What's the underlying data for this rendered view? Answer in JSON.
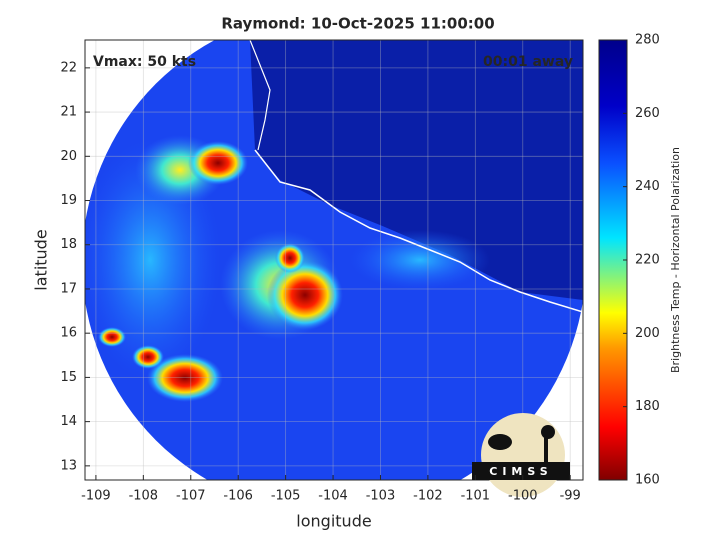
{
  "chart_data": {
    "type": "image",
    "title": "Raymond: 10-Oct-2025 11:00:00",
    "xlabel": "longitude",
    "ylabel": "latitude",
    "xlim": [
      -109.23,
      -98.73
    ],
    "ylim": [
      12.68,
      22.63
    ],
    "xticks": [
      -109,
      -108,
      -107,
      -106,
      -105,
      -104,
      -103,
      -102,
      -101,
      -100,
      -99
    ],
    "yticks": [
      13,
      14,
      15,
      16,
      17,
      18,
      19,
      20,
      21,
      22
    ],
    "grid": true,
    "annotations": [
      "Vmax: 50 kts",
      "00:01 away"
    ],
    "colorbar": {
      "label": "Brightness Temp - Horizontal Polarization",
      "clim": [
        160,
        280
      ],
      "ticks": [
        160,
        180,
        200,
        220,
        240,
        260,
        280
      ]
    },
    "logo": "CIMSS"
  }
}
